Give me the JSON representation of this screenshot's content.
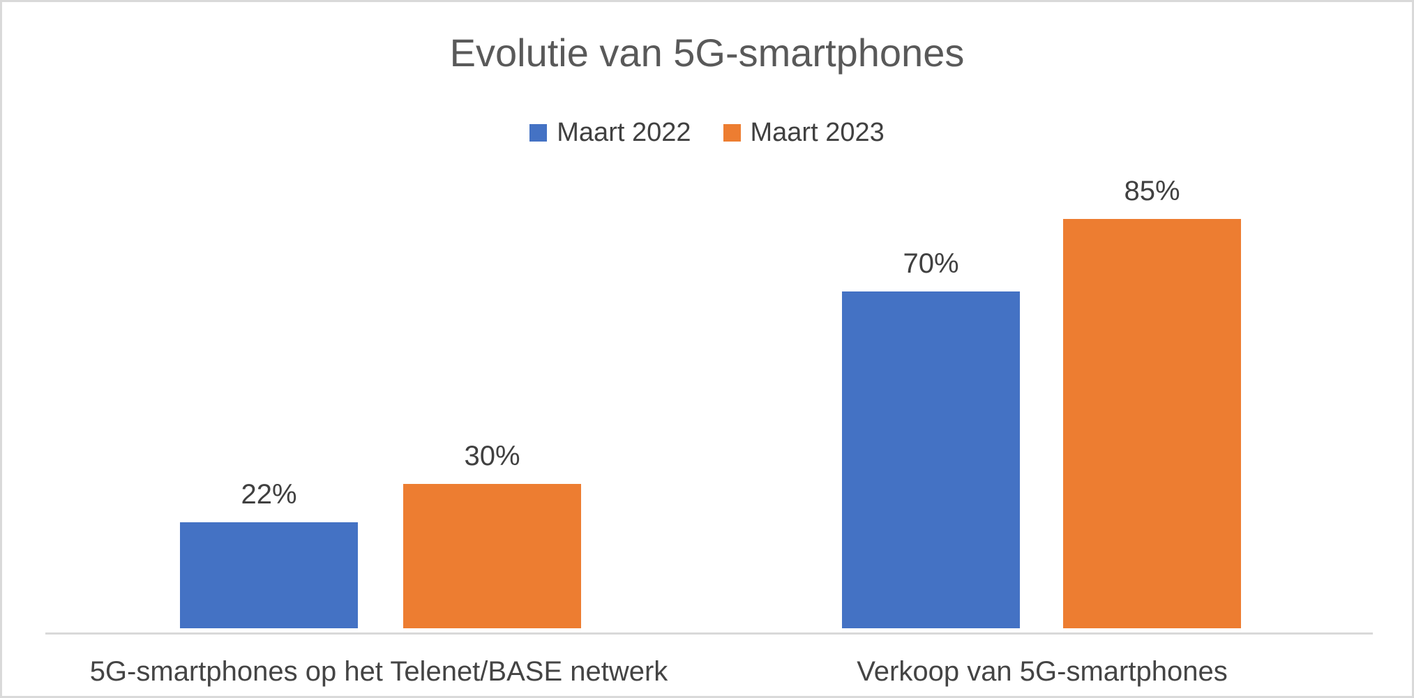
{
  "frame": {
    "background": "#FFFFFF",
    "border_color": "#D9D9D9"
  },
  "chart_data": {
    "type": "bar",
    "title": "Evolutie van 5G-smartphones",
    "title_color": "#595959",
    "categories": [
      "5G-smartphones op het Telenet/BASE netwerk",
      "Verkoop van 5G-smartphones"
    ],
    "series": [
      {
        "name": "Maart 2022",
        "color": "#4472C4",
        "values": [
          22,
          70
        ],
        "labels": [
          "22%",
          "70%"
        ]
      },
      {
        "name": "Maart 2023",
        "color": "#ED7D31",
        "values": [
          30,
          85
        ],
        "labels": [
          "30%",
          "85%"
        ]
      }
    ],
    "xlabel": "",
    "ylabel": "",
    "ylim": [
      0,
      100
    ],
    "value_format": "percent",
    "grid": false,
    "y_axis_visible": false,
    "legend_position": "top-center",
    "axis_line_color": "#D9D9D9",
    "data_label_color": "#404040"
  }
}
